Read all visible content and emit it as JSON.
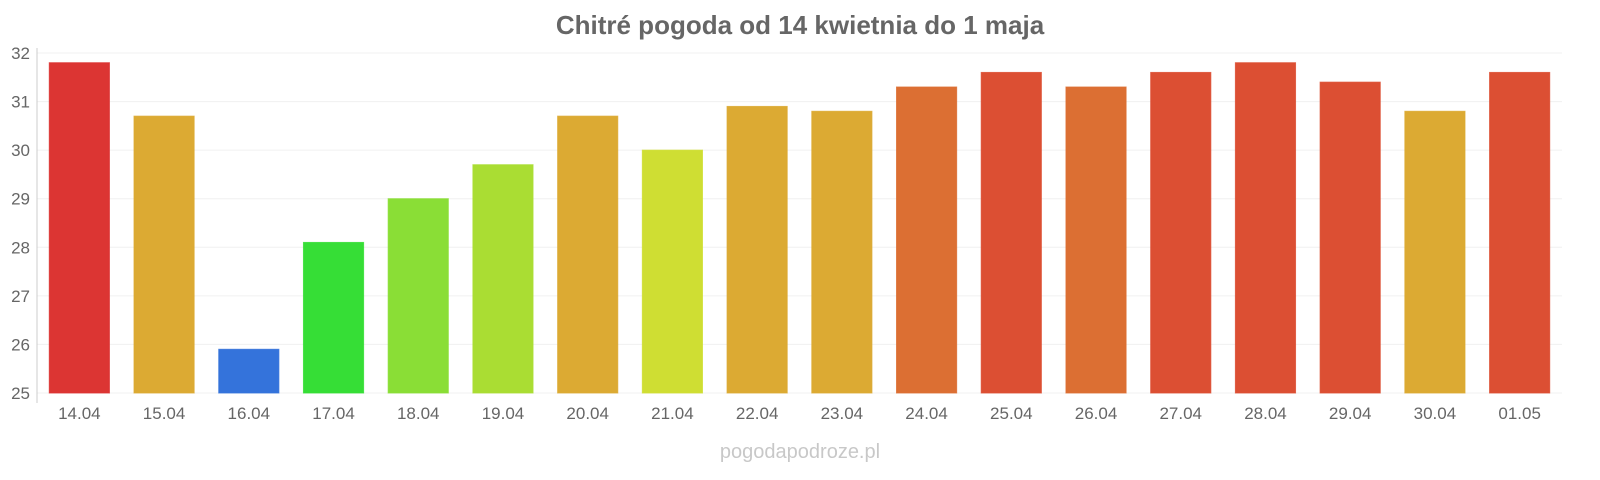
{
  "chart_data": {
    "type": "bar",
    "title": "Chitré pogoda od 14 kwietnia do 1 maja",
    "xlabel": "",
    "ylabel": "",
    "ylim": [
      25,
      32
    ],
    "yticks": [
      25,
      26,
      27,
      28,
      29,
      30,
      31,
      32
    ],
    "grid": true,
    "legend": "none",
    "categories": [
      "14.04",
      "15.04",
      "16.04",
      "17.04",
      "18.04",
      "19.04",
      "20.04",
      "21.04",
      "22.04",
      "23.04",
      "24.04",
      "25.04",
      "26.04",
      "27.04",
      "28.04",
      "29.04",
      "30.04",
      "01.05"
    ],
    "values": [
      31.8,
      30.7,
      25.9,
      28.1,
      29.0,
      29.7,
      30.7,
      30.0,
      30.9,
      30.8,
      31.3,
      31.6,
      31.3,
      31.6,
      31.8,
      31.4,
      30.8,
      31.6
    ],
    "colors": [
      "#dc3533",
      "#dcaa33",
      "#3473db",
      "#36de36",
      "#8ade36",
      "#aadd33",
      "#dcaa33",
      "#cfde33",
      "#dcaa33",
      "#dcaa33",
      "#dc6f33",
      "#dc4f33",
      "#dc6f33",
      "#dc4f33",
      "#dc4f33",
      "#dc4f33",
      "#dcaa33",
      "#dc4f33"
    ],
    "watermark": "pogodapodroze.pl"
  }
}
